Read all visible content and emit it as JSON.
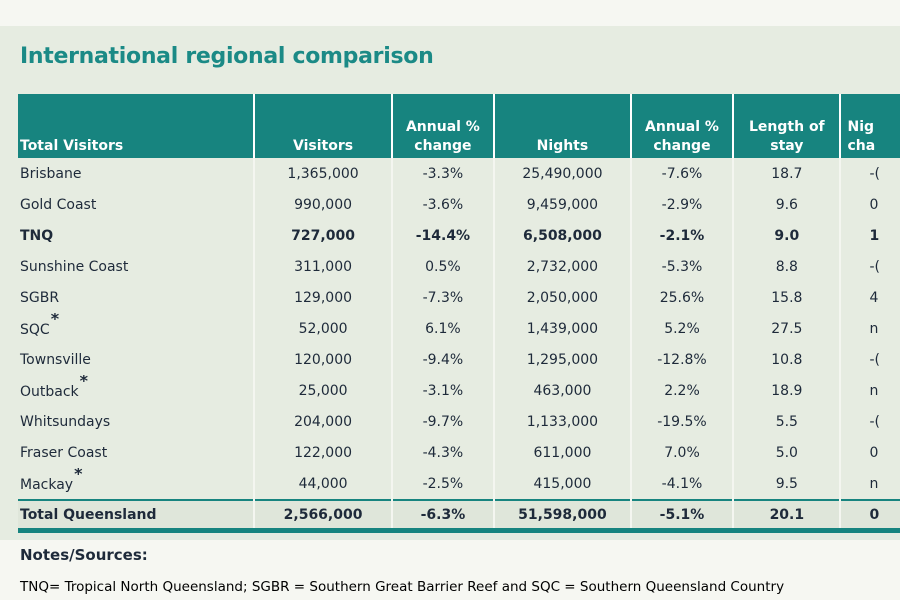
{
  "title": "International regional comparison",
  "headers": {
    "region": "Total Visitors",
    "visitors": "Visitors",
    "visitors_change_l1": "Annual %",
    "visitors_change_l2": "change",
    "nights": "Nights",
    "nights_change_l1": "Annual %",
    "nights_change_l2": "change",
    "length_l1": "Length of",
    "length_l2": "stay",
    "extra_l1": "Nig",
    "extra_l2": "cha"
  },
  "rows": [
    {
      "name": "Brisbane",
      "visitors": "1,365,000",
      "vchange": "-3.3%",
      "nights": "25,490,000",
      "nchange": "-7.6%",
      "stay": "18.7",
      "extra": "-(",
      "star": "",
      "bold": false
    },
    {
      "name": "Gold Coast",
      "visitors": "990,000",
      "vchange": "-3.6%",
      "nights": "9,459,000",
      "nchange": "-2.9%",
      "stay": "9.6",
      "extra": "0",
      "star": "",
      "bold": false
    },
    {
      "name": "TNQ",
      "visitors": "727,000",
      "vchange": "-14.4%",
      "nights": "6,508,000",
      "nchange": "-2.1%",
      "stay": "9.0",
      "extra": "1",
      "star": "",
      "bold": true
    },
    {
      "name": "Sunshine Coast",
      "visitors": "311,000",
      "vchange": "0.5%",
      "nights": "2,732,000",
      "nchange": "-5.3%",
      "stay": "8.8",
      "extra": "-(",
      "star": "",
      "bold": false
    },
    {
      "name": "SGBR",
      "visitors": "129,000",
      "vchange": "-7.3%",
      "nights": "2,050,000",
      "nchange": "25.6%",
      "stay": "15.8",
      "extra": "4",
      "star": "",
      "bold": false
    },
    {
      "name": "SQC",
      "visitors": "52,000",
      "vchange": "6.1%",
      "nights": "1,439,000",
      "nchange": "5.2%",
      "stay": "27.5",
      "extra": "n",
      "star": "*",
      "bold": false
    },
    {
      "name": "Townsville",
      "visitors": "120,000",
      "vchange": "-9.4%",
      "nights": "1,295,000",
      "nchange": "-12.8%",
      "stay": "10.8",
      "extra": "-(",
      "star": "",
      "bold": false
    },
    {
      "name": "Outback",
      "visitors": "25,000",
      "vchange": "-3.1%",
      "nights": "463,000",
      "nchange": "2.2%",
      "stay": "18.9",
      "extra": "n",
      "star": "*",
      "bold": false
    },
    {
      "name": "Whitsundays",
      "visitors": "204,000",
      "vchange": "-9.7%",
      "nights": "1,133,000",
      "nchange": "-19.5%",
      "stay": "5.5",
      "extra": "-(",
      "star": "",
      "bold": false
    },
    {
      "name": "Fraser Coast",
      "visitors": "122,000",
      "vchange": "-4.3%",
      "nights": "611,000",
      "nchange": "7.0%",
      "stay": "5.0",
      "extra": "0",
      "star": "",
      "bold": false
    },
    {
      "name": "Mackay",
      "visitors": "44,000",
      "vchange": "-2.5%",
      "nights": "415,000",
      "nchange": "-4.1%",
      "stay": "9.5",
      "extra": "n",
      "star": "*",
      "bold": false
    }
  ],
  "total": {
    "name": "Total Queensland",
    "visitors": "2,566,000",
    "vchange": "-6.3%",
    "nights": "51,598,000",
    "nchange": "-5.1%",
    "stay": "20.1",
    "extra": "0"
  },
  "notes": {
    "heading": "Notes/Sources:",
    "text": "TNQ= Tropical North Queensland; SGBR = Southern Great Barrier Reef and  SQC = Southern Queensland Country"
  },
  "colors": {
    "accent": "#17847f",
    "title": "#1b8a86",
    "panel": "#e6ece1"
  }
}
